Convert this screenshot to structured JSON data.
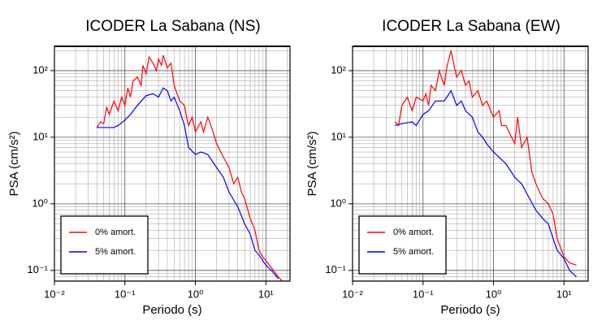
{
  "chart_data": [
    {
      "type": "line",
      "title": "ICODER La Sabana (NS)",
      "xlabel": "Periodo (s)",
      "ylabel": "PSA (cm/s²)",
      "xscale": "log",
      "yscale": "log",
      "xlim": [
        0.01,
        22
      ],
      "ylim": [
        0.069,
        232
      ],
      "xticks": [
        {
          "value": 0.01,
          "label": "10⁻²"
        },
        {
          "value": 0.1,
          "label": "10⁻¹"
        },
        {
          "value": 1,
          "label": "10⁰"
        },
        {
          "value": 10,
          "label": "10¹"
        }
      ],
      "yticks": [
        {
          "value": 0.1,
          "label": "10⁻¹"
        },
        {
          "value": 1,
          "label": "10⁰"
        },
        {
          "value": 10,
          "label": "10¹"
        },
        {
          "value": 100,
          "label": "10²"
        }
      ],
      "grid": true,
      "legend": "lower left",
      "series": [
        {
          "name": "0% amort.",
          "color": "#ff0000",
          "x": [
            0.04,
            0.045,
            0.05,
            0.055,
            0.06,
            0.07,
            0.08,
            0.09,
            0.1,
            0.11,
            0.12,
            0.13,
            0.15,
            0.17,
            0.18,
            0.2,
            0.22,
            0.25,
            0.28,
            0.3,
            0.33,
            0.35,
            0.4,
            0.45,
            0.5,
            0.55,
            0.6,
            0.7,
            0.75,
            0.8,
            0.9,
            1.0,
            1.2,
            1.3,
            1.5,
            1.7,
            2,
            2.5,
            3,
            3.5,
            4,
            4.5,
            5,
            6,
            7,
            8,
            9,
            10,
            12,
            15,
            17
          ],
          "values": [
            14,
            17,
            16,
            28,
            22,
            35,
            25,
            40,
            30,
            55,
            40,
            70,
            80,
            60,
            120,
            90,
            160,
            130,
            100,
            150,
            120,
            170,
            110,
            130,
            60,
            45,
            35,
            30,
            20,
            15,
            20,
            12,
            17,
            12,
            20,
            14,
            8,
            5,
            3.5,
            2,
            2.5,
            1.5,
            1.2,
            0.6,
            0.4,
            0.2,
            0.16,
            0.14,
            0.11,
            0.08,
            0.07
          ]
        },
        {
          "name": "5% amort.",
          "color": "#0000ff",
          "x": [
            0.04,
            0.05,
            0.07,
            0.08,
            0.1,
            0.12,
            0.15,
            0.2,
            0.25,
            0.3,
            0.35,
            0.4,
            0.45,
            0.5,
            0.6,
            0.7,
            0.8,
            1,
            1.2,
            1.5,
            2,
            2.5,
            3,
            4,
            5,
            6,
            7,
            8,
            10,
            12,
            15
          ],
          "values": [
            14,
            14,
            14,
            15,
            18,
            22,
            30,
            42,
            45,
            40,
            55,
            50,
            35,
            40,
            25,
            15,
            7,
            5.5,
            6,
            5.5,
            3.5,
            2.5,
            1.5,
            0.9,
            0.5,
            0.35,
            0.2,
            0.17,
            0.12,
            0.1,
            0.075
          ]
        }
      ]
    },
    {
      "type": "line",
      "title": "ICODER La Sabana (EW)",
      "xlabel": "Periodo (s)",
      "ylabel": "PSA (cm/s²)",
      "xscale": "log",
      "yscale": "log",
      "xlim": [
        0.01,
        22
      ],
      "ylim": [
        0.069,
        232
      ],
      "xticks": [
        {
          "value": 0.01,
          "label": "10⁻²"
        },
        {
          "value": 0.1,
          "label": "10⁻¹"
        },
        {
          "value": 1,
          "label": "10⁰"
        },
        {
          "value": 10,
          "label": "10¹"
        }
      ],
      "yticks": [
        {
          "value": 0.1,
          "label": "10⁻¹"
        },
        {
          "value": 1,
          "label": "10⁰"
        },
        {
          "value": 10,
          "label": "10¹"
        },
        {
          "value": 100,
          "label": "10²"
        }
      ],
      "grid": true,
      "legend": "lower left",
      "series": [
        {
          "name": "0% amort.",
          "color": "#ff0000",
          "x": [
            0.04,
            0.045,
            0.05,
            0.06,
            0.07,
            0.08,
            0.1,
            0.11,
            0.12,
            0.13,
            0.15,
            0.17,
            0.2,
            0.22,
            0.25,
            0.28,
            0.3,
            0.35,
            0.4,
            0.45,
            0.5,
            0.6,
            0.7,
            0.8,
            1.0,
            1.2,
            1.3,
            1.5,
            2,
            2.2,
            2.5,
            3,
            3.5,
            4,
            4.5,
            5,
            6,
            7,
            8,
            10,
            12,
            15
          ],
          "values": [
            17,
            15,
            30,
            40,
            25,
            40,
            35,
            45,
            30,
            60,
            50,
            100,
            60,
            120,
            200,
            110,
            80,
            100,
            60,
            70,
            40,
            50,
            30,
            35,
            20,
            25,
            15,
            15,
            8,
            20,
            7,
            10,
            3,
            2,
            1.5,
            1.2,
            1.0,
            0.7,
            0.3,
            0.16,
            0.13,
            0.12
          ]
        },
        {
          "name": "5% amort.",
          "color": "#0000ff",
          "x": [
            0.04,
            0.05,
            0.07,
            0.08,
            0.1,
            0.12,
            0.15,
            0.2,
            0.25,
            0.3,
            0.35,
            0.4,
            0.5,
            0.6,
            0.7,
            0.8,
            1,
            1.5,
            2,
            2.5,
            3,
            4,
            5,
            6,
            7,
            8,
            10,
            12,
            15
          ],
          "values": [
            15,
            16,
            17,
            15,
            22,
            25,
            35,
            35,
            50,
            30,
            35,
            25,
            20,
            12,
            10,
            8,
            6,
            4,
            2.5,
            2,
            1.4,
            0.8,
            0.6,
            0.5,
            0.3,
            0.2,
            0.15,
            0.1,
            0.08
          ]
        }
      ]
    }
  ]
}
